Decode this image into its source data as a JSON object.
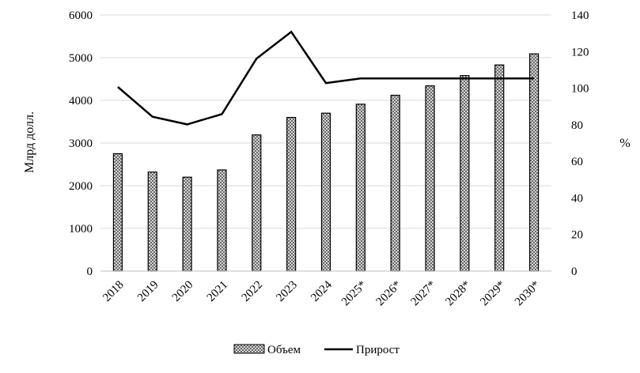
{
  "chart_data": {
    "type": "bar",
    "categories": [
      "2018",
      "2019",
      "2020",
      "2021",
      "2022",
      "2023",
      "2024",
      "2025*",
      "2026*",
      "2027*",
      "2028*",
      "2029*",
      "2030*"
    ],
    "series": [
      {
        "name": "Объем",
        "type": "bar",
        "axis": "left",
        "values": [
          2750,
          2320,
          2200,
          2370,
          3190,
          3600,
          3700,
          3910,
          4120,
          4340,
          4580,
          4830,
          5090
        ]
      },
      {
        "name": "Прирост",
        "type": "line",
        "axis": "right",
        "values": [
          100.7,
          84.4,
          80.2,
          85.8,
          116.2,
          130.8,
          102.8,
          105.3,
          105.3,
          105.3,
          105.3,
          105.3,
          105.3
        ]
      }
    ],
    "ylabel_left": "Млрд долл.",
    "ylabel_right": "%",
    "ylim_left": [
      0,
      6000
    ],
    "ylim_right": [
      0,
      140
    ],
    "yticks_left": [
      "0",
      "1000",
      "2000",
      "3000",
      "4000",
      "5000",
      "6000"
    ],
    "yticks_right": [
      "0",
      "20",
      "40",
      "60",
      "80",
      "100",
      "120",
      "140"
    ],
    "grid": true,
    "legend": "bottom-center",
    "colors": {
      "bar_fill": "#c8c8c8",
      "bar_pattern": "#6a6a6a",
      "bar_outline": "#000000",
      "line": "#000000",
      "grid": "#d9d9d9"
    }
  }
}
